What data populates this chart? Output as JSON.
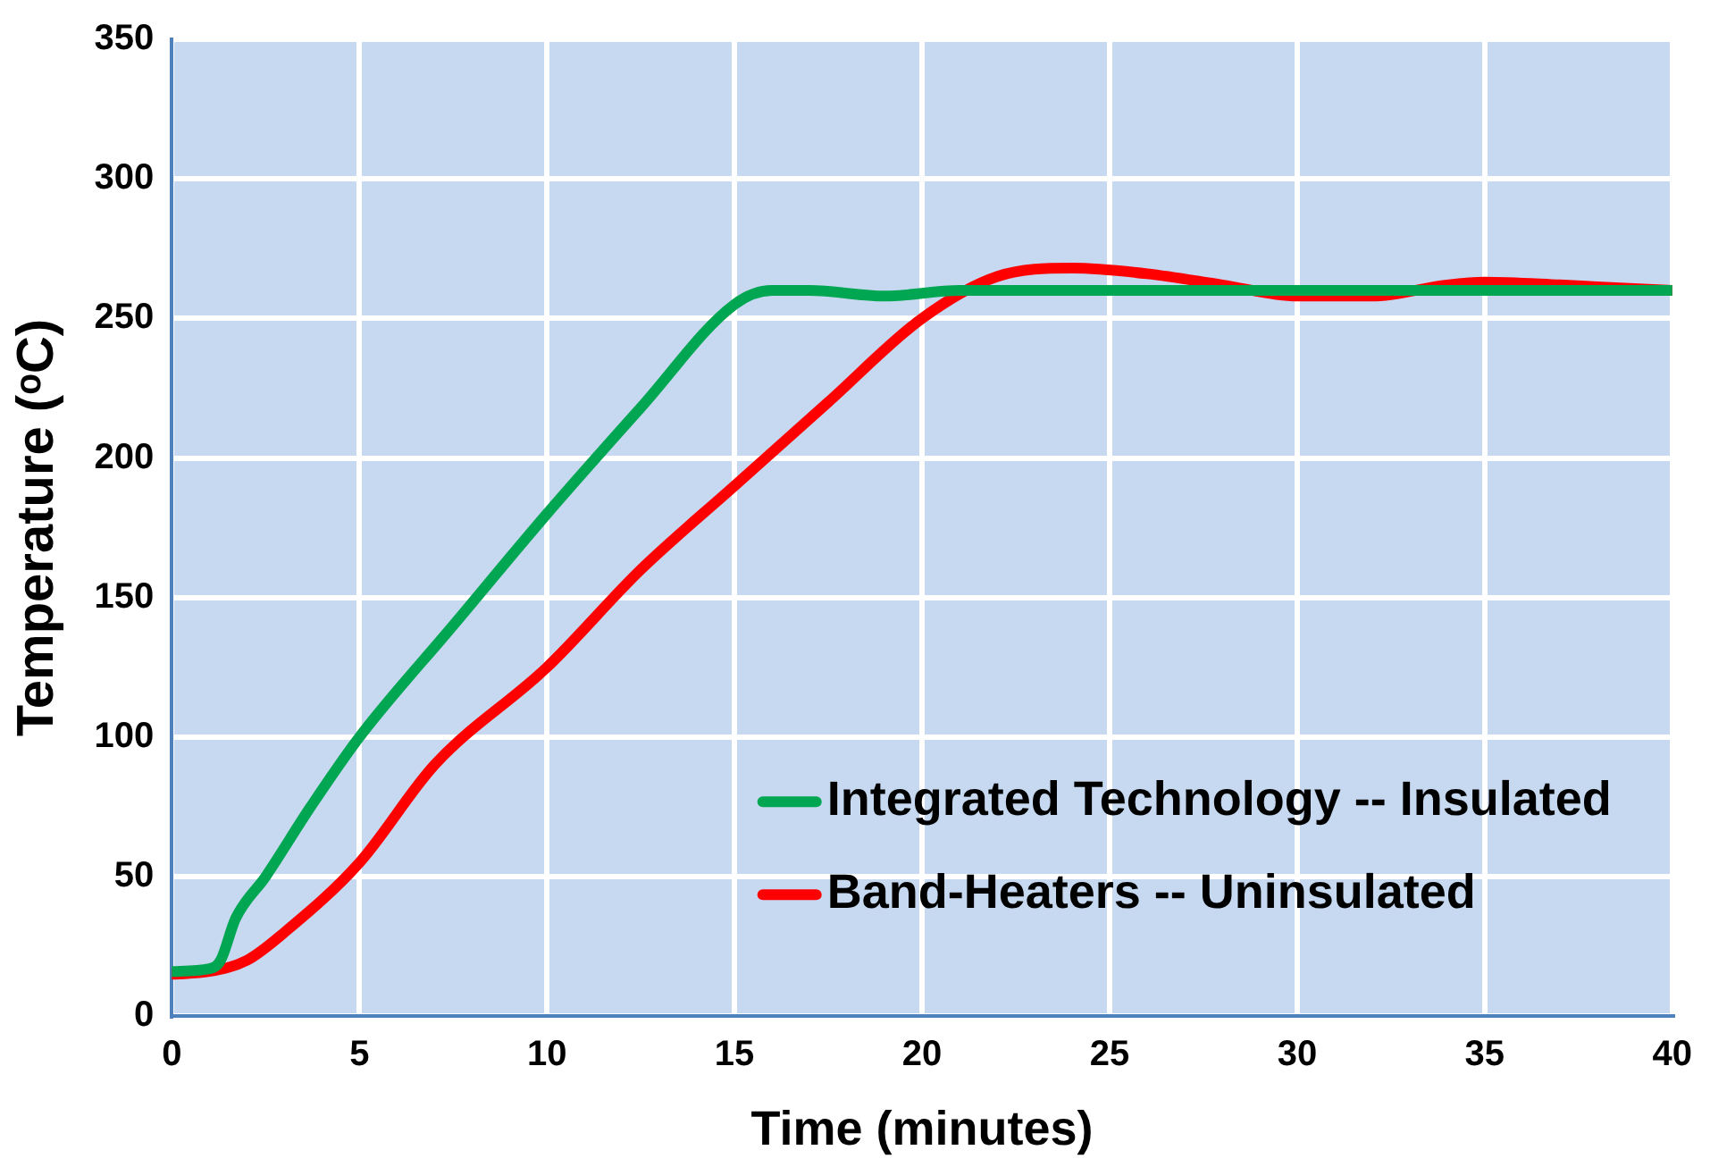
{
  "chart_data": {
    "type": "line",
    "xlabel": "Time (minutes)",
    "ylabel": "Temperature (ᵒC)",
    "xlim": [
      0,
      40
    ],
    "xticks": [
      0,
      5,
      10,
      15,
      20,
      25,
      30,
      35,
      40
    ],
    "ylim": [
      0,
      350
    ],
    "yticks": [
      0,
      50,
      100,
      150,
      200,
      250,
      300,
      350
    ],
    "grid": true,
    "legend": "bottom right",
    "marker": "none",
    "line_style": "solid",
    "series": [
      {
        "name": "Integrated Technology -- Insulated",
        "color": "#00a651",
        "x": [
          0,
          1,
          1.3,
          1.7,
          2.5,
          3.7,
          5,
          7.5,
          10,
          12.5,
          15,
          16,
          17,
          19,
          21,
          25,
          30,
          35,
          40
        ],
        "values": [
          16,
          17,
          20,
          35,
          50,
          75,
          100,
          140,
          180,
          218,
          255,
          260,
          260,
          258,
          260,
          260,
          260,
          260,
          260
        ]
      },
      {
        "name": "Band-Heaters -- Uninsulated",
        "color": "#ff0000",
        "x": [
          0,
          1,
          2,
          3,
          5,
          7,
          10,
          12.5,
          15,
          17.5,
          20,
          22,
          24,
          26,
          28,
          30,
          32,
          34,
          35,
          37,
          40
        ],
        "values": [
          15,
          16,
          20,
          30,
          55,
          90,
          125,
          160,
          190,
          220,
          250,
          265,
          268,
          266,
          262,
          258,
          258,
          262,
          263,
          262,
          260
        ]
      }
    ]
  }
}
